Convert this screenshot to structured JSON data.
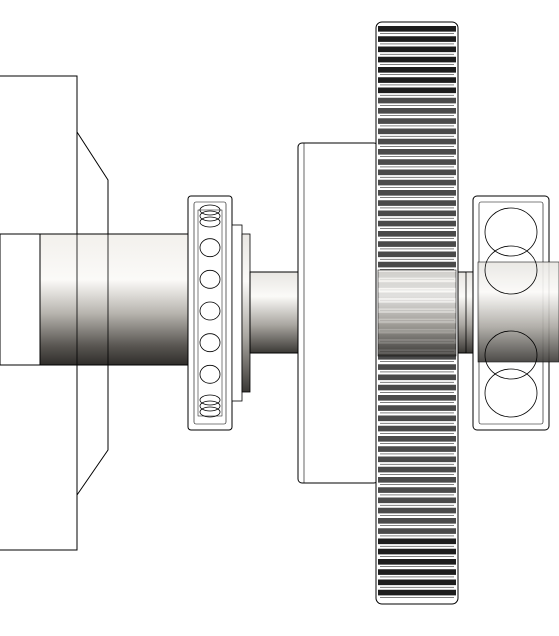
{
  "drawing": {
    "subject": "shaft-gear-bearing-assembly",
    "line_color": "#000000",
    "background_color": "#ffffff",
    "metal_light": "#f4f2ee",
    "metal_dark": "#3a3835",
    "gear_tooth_count_visible": 56,
    "left_bearing_ball_count_visible": 7,
    "right_bearing_ball_count_visible": 4
  }
}
